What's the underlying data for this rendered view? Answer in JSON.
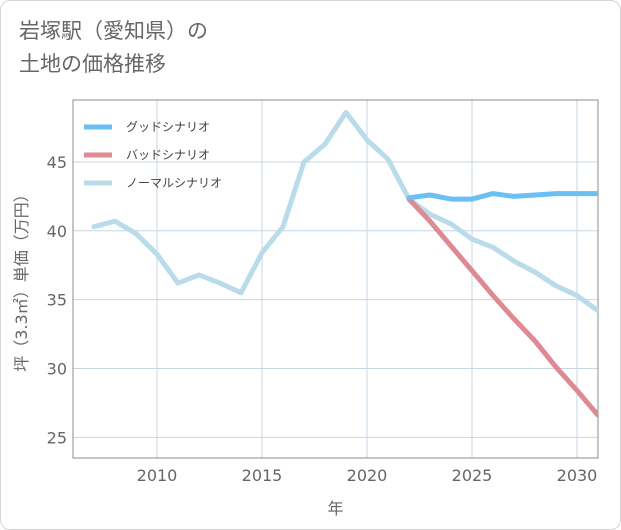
{
  "title_line1": "岩塚駅（愛知県）の",
  "title_line2": "土地の価格推移",
  "chart_data": {
    "type": "line",
    "xlabel": "年",
    "ylabel": "坪（3.3㎡）単価（万円）",
    "xlim": [
      2006,
      2031
    ],
    "ylim": [
      23.5,
      49.5
    ],
    "x_ticks": [
      2010,
      2015,
      2020,
      2025,
      2030
    ],
    "y_ticks": [
      25,
      30,
      35,
      40,
      45
    ],
    "grid": true,
    "legend_position": "top-left",
    "series": [
      {
        "name": "ノーマルシナリオ",
        "color": "#b9dbea",
        "x": [
          2007,
          2008,
          2009,
          2010,
          2011,
          2012,
          2013,
          2014,
          2015,
          2016,
          2017,
          2018,
          2019,
          2020,
          2021,
          2022,
          2023,
          2024,
          2025,
          2026,
          2027,
          2028,
          2029,
          2030,
          2031
        ],
        "values": [
          40.3,
          40.7,
          39.8,
          38.3,
          36.2,
          36.8,
          36.2,
          35.5,
          38.4,
          40.3,
          45.0,
          46.3,
          48.6,
          46.6,
          45.2,
          42.3,
          41.2,
          40.5,
          39.4,
          38.8,
          37.8,
          37.0,
          36.0,
          35.3,
          34.2
        ]
      },
      {
        "name": "バッドシナリオ",
        "color": "#dd8a92",
        "x": [
          2022,
          2023,
          2024,
          2025,
          2026,
          2027,
          2028,
          2029,
          2030,
          2031
        ],
        "values": [
          42.3,
          40.7,
          38.9,
          37.1,
          35.3,
          33.6,
          32.0,
          30.1,
          28.4,
          26.6
        ]
      },
      {
        "name": "グッドシナリオ",
        "color": "#6bbff2",
        "x": [
          2022,
          2023,
          2024,
          2025,
          2026,
          2027,
          2028,
          2029,
          2030,
          2031
        ],
        "values": [
          42.4,
          42.6,
          42.3,
          42.3,
          42.7,
          42.5,
          42.6,
          42.7,
          42.7,
          42.7
        ]
      }
    ],
    "legend_order": [
      "グッドシナリオ",
      "バッドシナリオ",
      "ノーマルシナリオ"
    ]
  }
}
